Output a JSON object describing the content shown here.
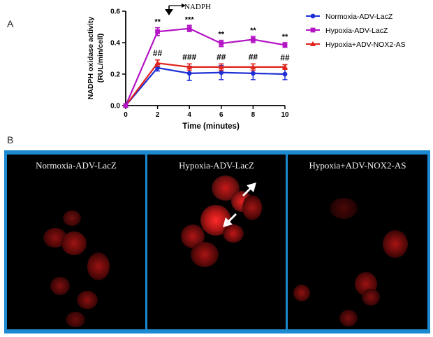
{
  "panel_a_label": "A",
  "panel_b_label": "B",
  "annotation": {
    "arrow_label": "NADPH"
  },
  "chart_data": {
    "type": "line",
    "xlabel": "Time (minutes)",
    "ylabel_line1": "NADPH oxidase activity",
    "ylabel_line2": "(RUL/min/cell)",
    "x": [
      0,
      2,
      4,
      6,
      8,
      10
    ],
    "x_ticks": [
      "0",
      "2",
      "4",
      "6",
      "8",
      "10"
    ],
    "y_ticks": [
      "0.0",
      "0.2",
      "0.4",
      "0.6"
    ],
    "xlim": [
      0,
      10
    ],
    "ylim": [
      0,
      0.6
    ],
    "grid": false,
    "legend_position": "top-right",
    "series": [
      {
        "name": "Normoxia-ADV-LacZ",
        "color": "#1f2fd6",
        "marker": "circle",
        "values": [
          0,
          0.24,
          0.205,
          0.21,
          0.205,
          0.2
        ],
        "errors": [
          0,
          0.02,
          0.045,
          0.045,
          0.04,
          0.035
        ]
      },
      {
        "name": "Hypoxia-ADV-LacZ",
        "color": "#b414c4",
        "marker": "square",
        "values": [
          0,
          0.47,
          0.49,
          0.395,
          0.42,
          0.385
        ],
        "errors": [
          0,
          0.025,
          0.02,
          0.02,
          0.02,
          0.015
        ]
      },
      {
        "name": "Hypoxia+ADV-NOX2-AS",
        "color": "#e0231c",
        "marker": "triangle",
        "values": [
          0,
          0.27,
          0.245,
          0.245,
          0.245,
          0.245
        ],
        "errors": [
          0,
          0.02,
          0.02,
          0.02,
          0.02,
          0.015
        ]
      }
    ],
    "annotations_hypoxia": [
      "**",
      "***",
      "**",
      "**",
      "**"
    ],
    "annotations_nox2": [
      "##",
      "###",
      "##",
      "##",
      "##"
    ]
  },
  "images": [
    {
      "label": "Normoxia-ADV-LacZ"
    },
    {
      "label": "Hypoxia-ADV-LacZ"
    },
    {
      "label": "Hypoxia+ADV-NOX2-AS"
    }
  ]
}
